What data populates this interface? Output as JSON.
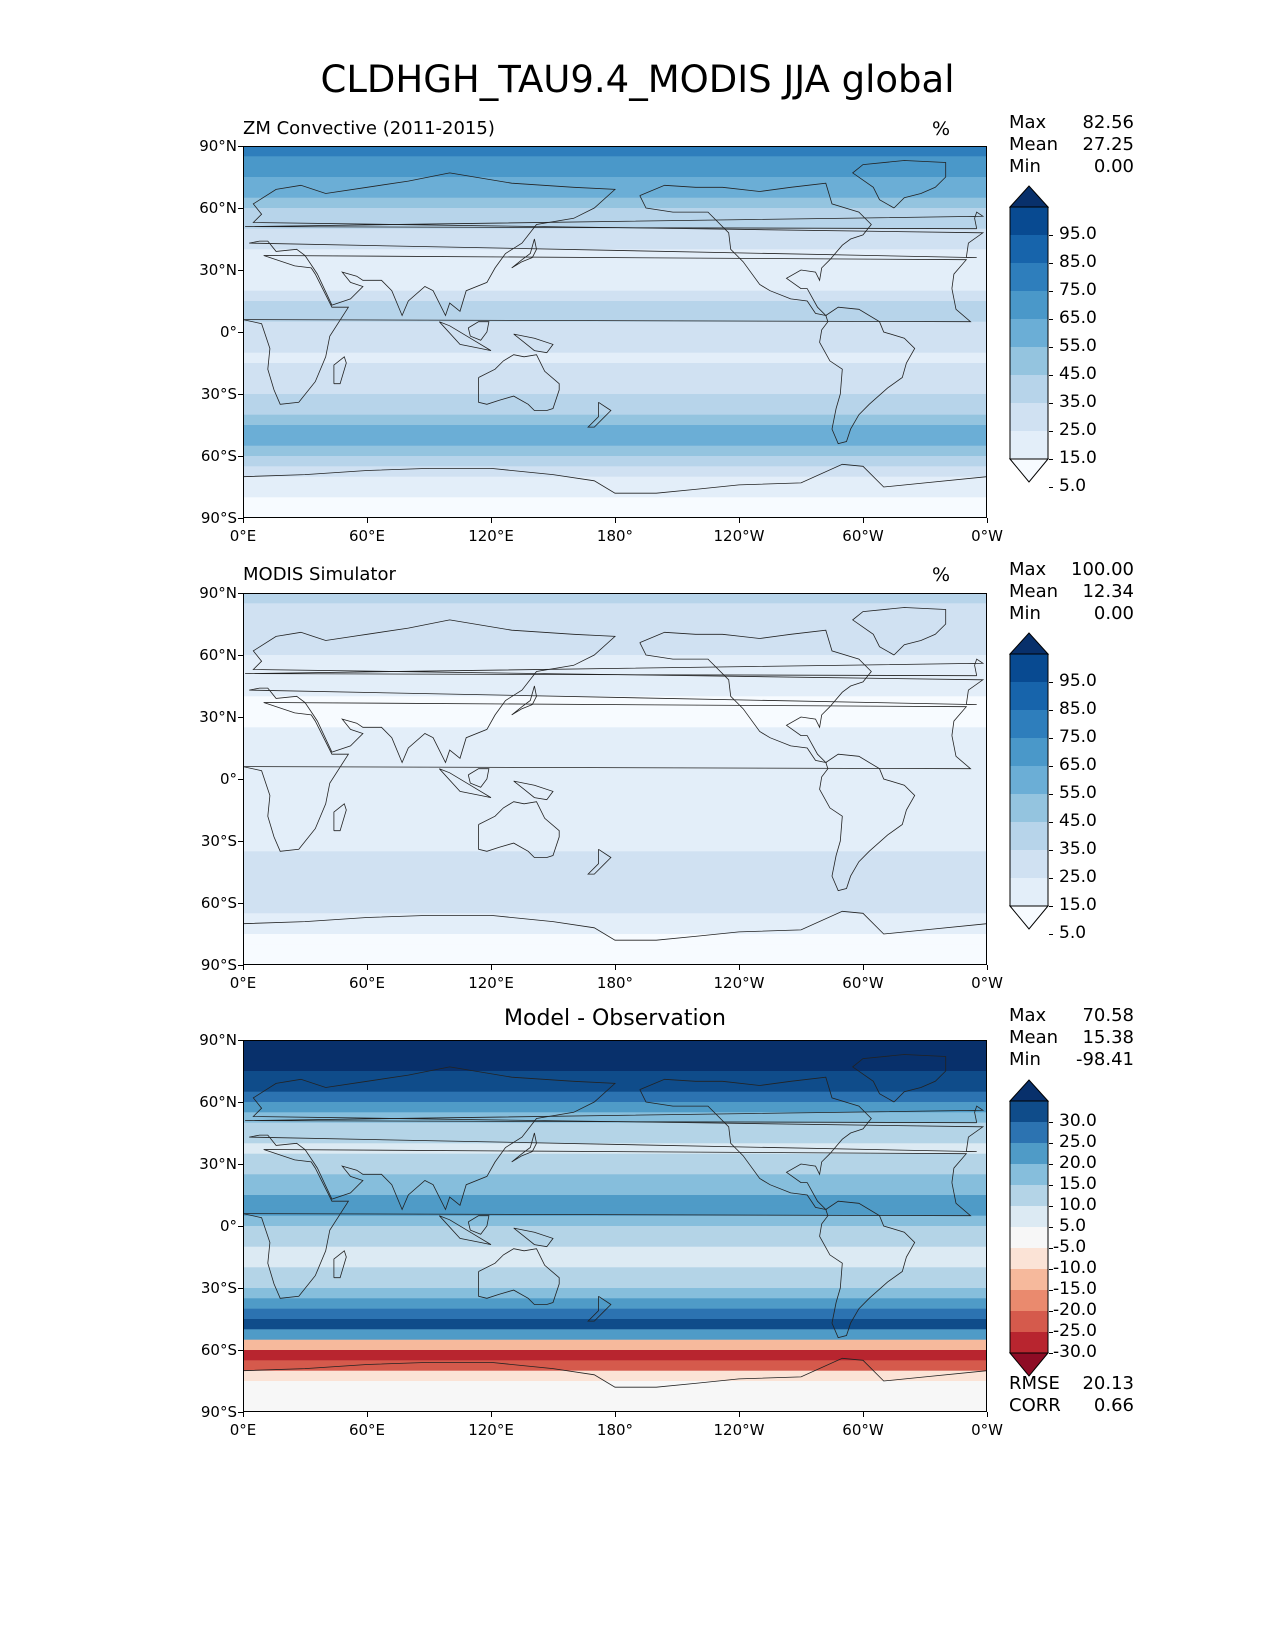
{
  "title": "CLDHGH_TAU9.4_MODIS JJA global",
  "chart_data": [
    {
      "type": "contour-map",
      "panel": "model",
      "title": "ZM Convective (2011-2015)",
      "units": "%",
      "stats": {
        "max_label": "Max",
        "max": "82.56",
        "mean_label": "Mean",
        "mean": "27.25",
        "min_label": "Min",
        "min": "0.00"
      },
      "x_ticks": [
        "0°E",
        "60°E",
        "120°E",
        "180°",
        "120°W",
        "60°W",
        "0°W"
      ],
      "y_ticks": [
        "90°N",
        "60°N",
        "30°N",
        "0°",
        "30°S",
        "60°S",
        "90°S"
      ],
      "colorbar": {
        "levels": [
          "95.0",
          "85.0",
          "75.0",
          "65.0",
          "55.0",
          "45.0",
          "35.0",
          "25.0",
          "15.0",
          "5.0"
        ],
        "extend": "both",
        "colormap": "Blues"
      },
      "zonal_mean_profile": [
        [
          90,
          70
        ],
        [
          80,
          62
        ],
        [
          70,
          50
        ],
        [
          60,
          38
        ],
        [
          50,
          24
        ],
        [
          40,
          12
        ],
        [
          30,
          10
        ],
        [
          20,
          16
        ],
        [
          10,
          28
        ],
        [
          0,
          20
        ],
        [
          -10,
          14
        ],
        [
          -20,
          16
        ],
        [
          -30,
          22
        ],
        [
          -40,
          38
        ],
        [
          -50,
          52
        ],
        [
          -60,
          42
        ],
        [
          -70,
          12
        ],
        [
          -80,
          4
        ],
        [
          -90,
          2
        ]
      ]
    },
    {
      "type": "contour-map",
      "panel": "observation",
      "title": "MODIS Simulator",
      "units": "%",
      "stats": {
        "max_label": "Max",
        "max": "100.00",
        "mean_label": "Mean",
        "mean": "12.34",
        "min_label": "Min",
        "min": "0.00"
      },
      "x_ticks": [
        "0°E",
        "60°E",
        "120°E",
        "180°",
        "120°W",
        "60°W",
        "0°W"
      ],
      "y_ticks": [
        "90°N",
        "60°N",
        "30°N",
        "0°",
        "30°S",
        "60°S",
        "90°S"
      ],
      "colorbar": {
        "levels": [
          "95.0",
          "85.0",
          "75.0",
          "65.0",
          "55.0",
          "45.0",
          "35.0",
          "25.0",
          "15.0",
          "5.0"
        ],
        "extend": "both",
        "colormap": "Blues"
      },
      "zonal_mean_profile": [
        [
          90,
          26
        ],
        [
          80,
          22
        ],
        [
          70,
          18
        ],
        [
          60,
          16
        ],
        [
          50,
          10
        ],
        [
          40,
          5
        ],
        [
          30,
          4
        ],
        [
          20,
          6
        ],
        [
          10,
          10
        ],
        [
          0,
          7
        ],
        [
          -10,
          7
        ],
        [
          -20,
          10
        ],
        [
          -30,
          12
        ],
        [
          -40,
          16
        ],
        [
          -50,
          18
        ],
        [
          -60,
          16
        ],
        [
          -70,
          12
        ],
        [
          -75,
          0
        ],
        [
          -90,
          0
        ]
      ]
    },
    {
      "type": "contour-map",
      "panel": "difference",
      "title": "Model - Observation",
      "units": "",
      "stats": {
        "max_label": "Max",
        "max": "70.58",
        "mean_label": "Mean",
        "mean": "15.38",
        "min_label": "Min",
        "min": "-98.41",
        "rmse_label": "RMSE",
        "rmse": "20.13",
        "corr_label": "CORR",
        "corr": "0.66"
      },
      "x_ticks": [
        "0°E",
        "60°E",
        "120°E",
        "180°",
        "120°W",
        "60°W",
        "0°W"
      ],
      "y_ticks": [
        "90°N",
        "60°N",
        "30°N",
        "0°",
        "30°S",
        "60°S",
        "90°S"
      ],
      "colorbar": {
        "levels": [
          "30.0",
          "25.0",
          "20.0",
          "15.0",
          "10.0",
          "5.0",
          "-5.0",
          "-10.0",
          "-15.0",
          "-20.0",
          "-25.0",
          "-30.0"
        ],
        "extend": "both",
        "colormap": "RdBu"
      },
      "zonal_mean_profile": [
        [
          90,
          40
        ],
        [
          80,
          38
        ],
        [
          70,
          30
        ],
        [
          60,
          22
        ],
        [
          50,
          14
        ],
        [
          40,
          6
        ],
        [
          30,
          8
        ],
        [
          20,
          14
        ],
        [
          10,
          22
        ],
        [
          0,
          13
        ],
        [
          -10,
          6
        ],
        [
          -20,
          6
        ],
        [
          -30,
          12
        ],
        [
          -40,
          22
        ],
        [
          -50,
          30
        ],
        [
          -60,
          -20
        ],
        [
          -65,
          -28
        ],
        [
          -70,
          -10
        ],
        [
          -75,
          0
        ],
        [
          -90,
          0
        ]
      ]
    }
  ],
  "colors": {
    "blues": [
      "#f7fbff",
      "#e3eef9",
      "#d0e1f2",
      "#b7d4ea",
      "#94c4df",
      "#6baed6",
      "#4a98c9",
      "#2e7ebc",
      "#1764ab",
      "#084a91",
      "#08306b"
    ],
    "rdbu_neg": [
      "#f7f7f7",
      "#fbe3d6",
      "#f6b99c",
      "#ea8a6e",
      "#d55a4c",
      "#b8252f",
      "#8e0c25",
      "#67001f"
    ],
    "rdbu_pos": [
      "#f7f7f7",
      "#dceaf3",
      "#b4d4e7",
      "#86bedc",
      "#4f9bc7",
      "#2c73b1",
      "#0f4c8a",
      "#08306b"
    ],
    "coast": "#222222"
  }
}
